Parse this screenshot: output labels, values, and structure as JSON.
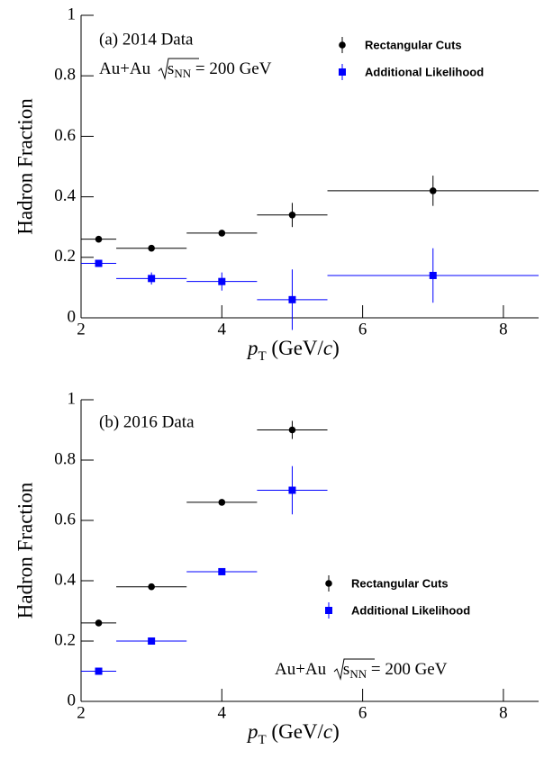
{
  "chart_data": [
    {
      "type": "scatter",
      "ylabel": "Hadron Fraction",
      "xlabel": [
        "p",
        "T",
        " (GeV/",
        "c",
        ")"
      ],
      "panel_label": "(a) 2014 Data",
      "annotation": [
        "Au+Au ",
        "s",
        "NN",
        " = 200 GeV"
      ],
      "xlim": [
        2,
        8.5
      ],
      "xticks": [
        2,
        4,
        6,
        8
      ],
      "ylim": [
        0,
        1
      ],
      "yticks": [
        0,
        0.2,
        0.4,
        0.6,
        0.8,
        1
      ],
      "series": [
        {
          "name": "Rectangular Cuts",
          "color": "#000000",
          "marker": "circle",
          "x": [
            2.25,
            3,
            4,
            5,
            7
          ],
          "xerr": [
            0.25,
            0.5,
            0.5,
            0.5,
            1.5
          ],
          "values": [
            0.26,
            0.23,
            0.28,
            0.34,
            0.42
          ],
          "yerr": [
            0.01,
            0.01,
            0.01,
            0.04,
            0.05
          ]
        },
        {
          "name": "Additional Likelihood",
          "color": "#0000ff",
          "marker": "square",
          "x": [
            2.25,
            3,
            4,
            5,
            7
          ],
          "xerr": [
            0.25,
            0.5,
            0.5,
            0.5,
            1.5
          ],
          "values": [
            0.18,
            0.13,
            0.12,
            0.06,
            0.14
          ],
          "yerr": [
            0.01,
            0.02,
            0.03,
            0.1,
            0.09
          ]
        }
      ]
    },
    {
      "type": "scatter",
      "ylabel": "Hadron Fraction",
      "xlabel": [
        "p",
        "T",
        " (GeV/",
        "c",
        ")"
      ],
      "panel_label": "(b) 2016 Data",
      "annotation": [
        "Au+Au ",
        "s",
        "NN",
        " = 200 GeV"
      ],
      "xlim": [
        2,
        8.5
      ],
      "xticks": [
        2,
        4,
        6,
        8
      ],
      "ylim": [
        0,
        1
      ],
      "yticks": [
        0,
        0.2,
        0.4,
        0.6,
        0.8,
        1
      ],
      "series": [
        {
          "name": "Rectangular Cuts",
          "color": "#000000",
          "marker": "circle",
          "x": [
            2.25,
            3,
            4,
            5
          ],
          "xerr": [
            0.25,
            0.5,
            0.5,
            0.5
          ],
          "values": [
            0.26,
            0.38,
            0.66,
            0.9
          ],
          "yerr": [
            0.01,
            0.01,
            0.01,
            0.03
          ]
        },
        {
          "name": "Additional Likelihood",
          "color": "#0000ff",
          "marker": "square",
          "x": [
            2.25,
            3,
            4,
            5
          ],
          "xerr": [
            0.25,
            0.5,
            0.5,
            0.5
          ],
          "values": [
            0.1,
            0.2,
            0.43,
            0.7
          ],
          "yerr": [
            0.01,
            0.01,
            0.01,
            0.08
          ]
        }
      ]
    }
  ]
}
